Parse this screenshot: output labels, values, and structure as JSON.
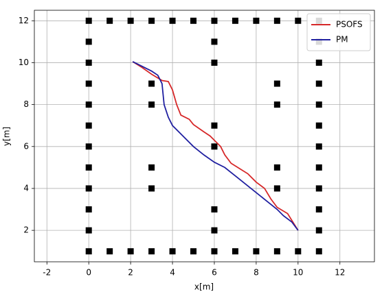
{
  "chart_data": {
    "type": "line",
    "x_label": "x[m]",
    "y_label": "y[m]",
    "xlim": [
      -2.6,
      13.65
    ],
    "ylim": [
      0.5,
      12.5
    ],
    "xticks": [
      -2,
      0,
      2,
      4,
      6,
      8,
      10,
      12
    ],
    "yticks": [
      2,
      4,
      6,
      8,
      10,
      12
    ],
    "grid": true,
    "legend": "upper right",
    "series": [
      {
        "type": "scatter",
        "marker": "square",
        "color": "#000000",
        "x": [
          0,
          1,
          2,
          3,
          4,
          5,
          6,
          7,
          8,
          9,
          10,
          11,
          0,
          1,
          2,
          3,
          4,
          5,
          6,
          7,
          8,
          9,
          10,
          11,
          0,
          0,
          0,
          0,
          0,
          0,
          0,
          0,
          0,
          0,
          11,
          11,
          11,
          11,
          11,
          11,
          11,
          11,
          11,
          11,
          6,
          6,
          6,
          6,
          6,
          6,
          3,
          3,
          3,
          3,
          9,
          9,
          9,
          9
        ],
        "values": [
          12,
          12,
          12,
          12,
          12,
          12,
          12,
          12,
          12,
          12,
          12,
          12,
          1,
          1,
          1,
          1,
          1,
          1,
          1,
          1,
          1,
          1,
          1,
          1,
          2,
          3,
          4,
          5,
          6,
          7,
          8,
          9,
          10,
          11,
          2,
          3,
          4,
          5,
          6,
          7,
          8,
          9,
          10,
          11,
          2,
          3,
          6,
          7,
          10,
          11,
          4,
          5,
          8,
          9,
          4,
          5,
          8,
          9
        ]
      },
      {
        "name": "PSOFS",
        "color": "#d62728",
        "x": [
          2.1,
          2.5,
          3,
          3.5,
          3.8,
          4,
          4.2,
          4.4,
          4.8,
          5,
          5.5,
          5.8,
          6,
          6.3,
          6.5,
          6.8,
          7.2,
          7.6,
          8,
          8.4,
          8.7,
          9,
          9.5,
          10
        ],
        "values": [
          10.05,
          9.8,
          9.45,
          9.15,
          9.1,
          8.7,
          8.0,
          7.5,
          7.3,
          7.05,
          6.7,
          6.5,
          6.3,
          6.0,
          5.6,
          5.2,
          4.95,
          4.7,
          4.3,
          4.0,
          3.5,
          3.1,
          2.8,
          2.0
        ]
      },
      {
        "name": "PM",
        "color": "#1f1fa0",
        "x": [
          2.1,
          2.6,
          3,
          3.3,
          3.5,
          3.6,
          3.8,
          4,
          4.5,
          5,
          5.5,
          6,
          6.5,
          7,
          7.5,
          8,
          8.5,
          9,
          9.3,
          9.7,
          10
        ],
        "values": [
          10.05,
          9.8,
          9.6,
          9.4,
          9.0,
          8.0,
          7.4,
          7.0,
          6.5,
          6.0,
          5.6,
          5.25,
          5.0,
          4.6,
          4.2,
          3.8,
          3.4,
          3.0,
          2.7,
          2.4,
          2.0
        ]
      }
    ]
  }
}
